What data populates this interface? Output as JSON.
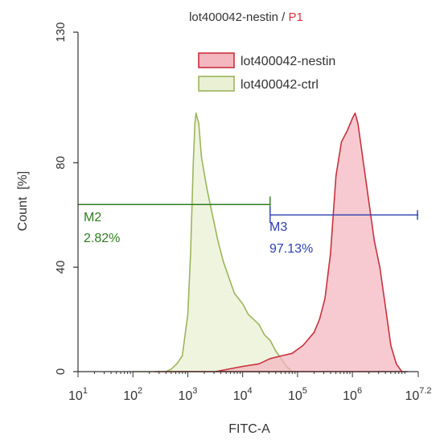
{
  "chart_data": {
    "type": "area",
    "title": {
      "parts": [
        {
          "text": "lot400042-nestin",
          "color": "#333333"
        },
        {
          "text": " / ",
          "color": "#333333"
        },
        {
          "text": "P1",
          "color": "#e0303a"
        }
      ]
    },
    "xlabel": "FITC-A",
    "ylabel": "Count  [%]",
    "x_scale": "log10",
    "xlim": [
      10,
      15848932
    ],
    "ylim": [
      0,
      130
    ],
    "x_ticks": [
      {
        "value": 10,
        "base": "10",
        "exp": "1"
      },
      {
        "value": 100,
        "base": "10",
        "exp": "2"
      },
      {
        "value": 1000,
        "base": "10",
        "exp": "3"
      },
      {
        "value": 10000,
        "base": "10",
        "exp": "4"
      },
      {
        "value": 100000,
        "base": "10",
        "exp": "5"
      },
      {
        "value": 1000000,
        "base": "10",
        "exp": "6"
      },
      {
        "value": 15848932,
        "base": "10",
        "exp": "7.2"
      }
    ],
    "y_ticks": [
      0,
      40,
      80,
      130
    ],
    "legend": {
      "position": "top-right",
      "entries": [
        {
          "label": "lot400042-nestin",
          "stroke": "#c8323c",
          "fill": "#f4b6bf"
        },
        {
          "label": "lot400042-ctrl",
          "stroke": "#9bb55a",
          "fill": "#e9f0d4"
        }
      ]
    },
    "series": [
      {
        "name": "lot400042-ctrl",
        "stroke": "#9bb55a",
        "fill": "#e9f0d4",
        "fill_opacity": 0.75,
        "points": [
          [
            100,
            0
          ],
          [
            398,
            0
          ],
          [
            501,
            1
          ],
          [
            631,
            3
          ],
          [
            794,
            6
          ],
          [
            1000,
            22
          ],
          [
            1122,
            45
          ],
          [
            1259,
            80
          ],
          [
            1349,
            95
          ],
          [
            1413,
            99
          ],
          [
            1585,
            95
          ],
          [
            1778,
            82
          ],
          [
            2239,
            70
          ],
          [
            2818,
            60
          ],
          [
            3548,
            50
          ],
          [
            4467,
            42
          ],
          [
            5623,
            36
          ],
          [
            7079,
            30
          ],
          [
            10000,
            26
          ],
          [
            12589,
            22
          ],
          [
            15849,
            20
          ],
          [
            19953,
            18
          ],
          [
            25119,
            14
          ],
          [
            31623,
            12
          ],
          [
            39811,
            8
          ],
          [
            50119,
            5
          ],
          [
            63096,
            2
          ],
          [
            79433,
            0
          ],
          [
            100000,
            0
          ]
        ]
      },
      {
        "name": "lot400042-nestin",
        "stroke": "#c8323c",
        "fill": "#f4b6bf",
        "fill_opacity": 0.72,
        "points": [
          [
            251,
            0
          ],
          [
            1000,
            0
          ],
          [
            3162,
            0
          ],
          [
            10000,
            2
          ],
          [
            19953,
            3
          ],
          [
            31623,
            5
          ],
          [
            50119,
            6
          ],
          [
            79433,
            7
          ],
          [
            125893,
            10
          ],
          [
            199526,
            15
          ],
          [
            251189,
            20
          ],
          [
            316228,
            28
          ],
          [
            398107,
            45
          ],
          [
            501187,
            75
          ],
          [
            630957,
            88
          ],
          [
            794328,
            92
          ],
          [
            1000000,
            97
          ],
          [
            1122018,
            99
          ],
          [
            1258925,
            95
          ],
          [
            1584893,
            80
          ],
          [
            1995262,
            65
          ],
          [
            2511886,
            50
          ],
          [
            3162278,
            40
          ],
          [
            3981072,
            25
          ],
          [
            5011872,
            10
          ],
          [
            6309573,
            3
          ],
          [
            7943282,
            0
          ],
          [
            10000000,
            0
          ]
        ]
      }
    ],
    "markers": [
      {
        "name": "M2",
        "percent": "2.82%",
        "from": 10,
        "to": 31623,
        "y": 64,
        "color": "#2e7d1e"
      },
      {
        "name": "M3",
        "percent": "97.13%",
        "from": 31623,
        "to": 15848932,
        "y": 60,
        "color": "#2d3fae"
      }
    ]
  }
}
